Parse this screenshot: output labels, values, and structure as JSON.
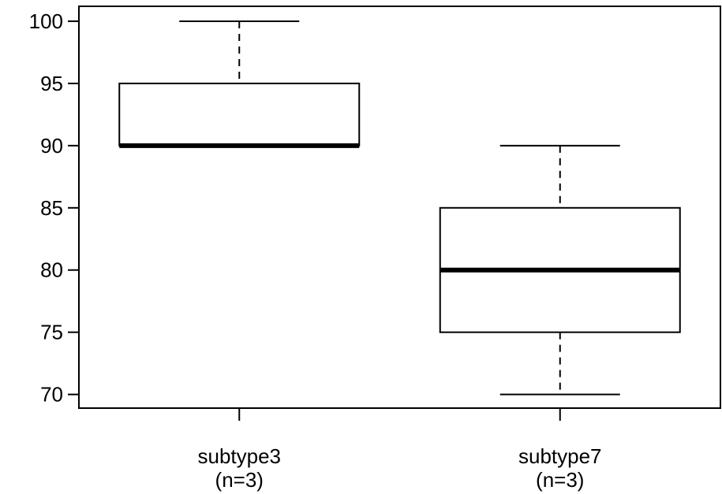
{
  "chart_data": {
    "type": "boxplot",
    "categories": [
      "subtype3",
      "subtype7"
    ],
    "category_sublabels": [
      "(n=3)",
      "(n=3)"
    ],
    "boxes": [
      {
        "category": "subtype3",
        "n": 3,
        "whisker_low": 90,
        "q1": 90,
        "median": 90,
        "q3": 95,
        "whisker_high": 100
      },
      {
        "category": "subtype7",
        "n": 3,
        "whisker_low": 70,
        "q1": 75,
        "median": 80,
        "q3": 85,
        "whisker_high": 90
      }
    ],
    "y_ticks": [
      "70",
      "75",
      "80",
      "85",
      "90",
      "95",
      "100"
    ],
    "ylim": [
      68.9,
      101.2
    ],
    "xlim": [
      0.5,
      2.5
    ],
    "grid": false,
    "colors": {
      "box_fill": "#ffffff",
      "stroke": "#000000"
    }
  }
}
